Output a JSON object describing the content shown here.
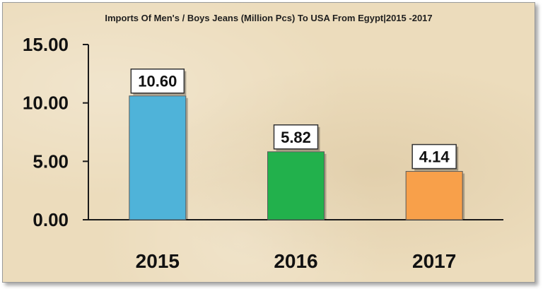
{
  "chart_data": {
    "type": "bar",
    "title": "Imports Of Men's / Boys Jeans (Million Pcs) To USA From Egypt|2015 -2017",
    "categories": [
      "2015",
      "2016",
      "2017"
    ],
    "values": [
      10.6,
      5.82,
      4.14
    ],
    "data_labels": [
      "10.60",
      "5.82",
      "4.14"
    ],
    "colors": [
      "#4fb3d9",
      "#22b14c",
      "#f8a04a"
    ],
    "ylim": [
      0,
      15
    ],
    "yticks": [
      0,
      5,
      10,
      15
    ],
    "ytick_labels": [
      "0.00",
      "5.00",
      "10.00",
      "15.00"
    ],
    "xlabel": "",
    "ylabel": "",
    "grid": false,
    "legend": "none"
  }
}
